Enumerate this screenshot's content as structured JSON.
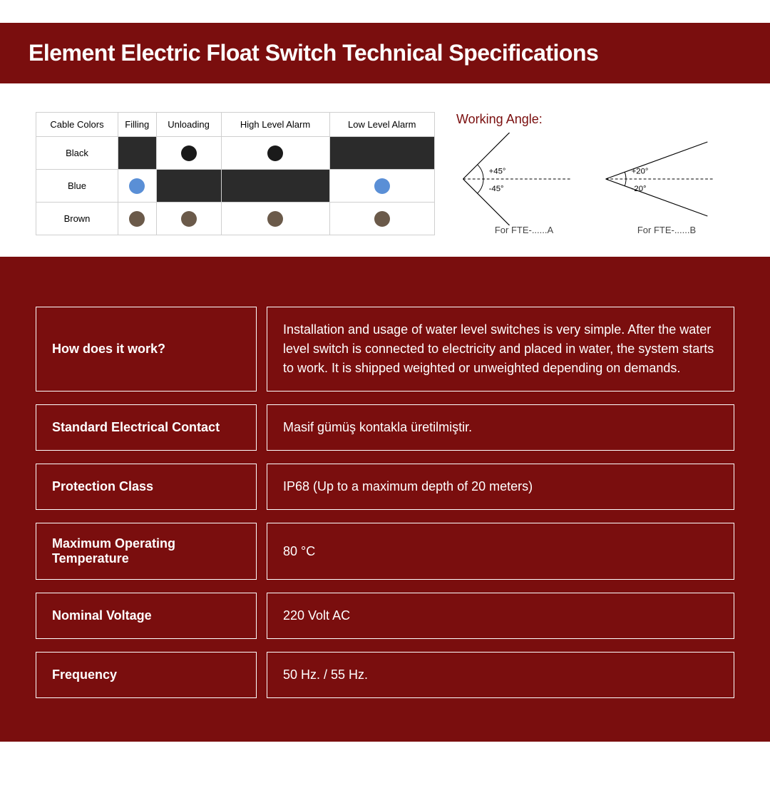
{
  "header": {
    "title": "Element Electric Float Switch Technical Specifications"
  },
  "colors": {
    "brand": "#7a0e0e",
    "dark_cell": "#2b2b2b",
    "table_border": "#cfcfcf",
    "dot_black": "#1a1a1a",
    "dot_blue": "#5a8fd6",
    "dot_brown": "#6b5a4a",
    "white": "#ffffff"
  },
  "cable_table": {
    "columns": [
      "Cable Colors",
      "Filling",
      "Unloading",
      "High Level Alarm",
      "Low Level Alarm"
    ],
    "rows": [
      {
        "label": "Black",
        "cells": [
          {
            "bg": "dark",
            "dot": null
          },
          {
            "bg": "white",
            "dot": "dot_black"
          },
          {
            "bg": "white",
            "dot": "dot_black"
          },
          {
            "bg": "dark",
            "dot": null
          }
        ]
      },
      {
        "label": "Blue",
        "cells": [
          {
            "bg": "white",
            "dot": "dot_blue"
          },
          {
            "bg": "dark",
            "dot": null
          },
          {
            "bg": "dark",
            "dot": null
          },
          {
            "bg": "white",
            "dot": "dot_blue"
          }
        ]
      },
      {
        "label": "Brown",
        "cells": [
          {
            "bg": "white",
            "dot": "dot_brown"
          },
          {
            "bg": "white",
            "dot": "dot_brown"
          },
          {
            "bg": "white",
            "dot": "dot_brown"
          },
          {
            "bg": "white",
            "dot": "dot_brown"
          }
        ]
      }
    ]
  },
  "working_angle": {
    "label": "Working Angle:",
    "diagrams": [
      {
        "top_label": "+45°",
        "bottom_label": "-45°",
        "angle_deg": 45,
        "caption": "For FTE-......A"
      },
      {
        "top_label": "+20°",
        "bottom_label": "-20°",
        "angle_deg": 20,
        "caption": "For FTE-......B"
      }
    ]
  },
  "specs": [
    {
      "label": "How does it work?",
      "value": "Installation and usage of water level switches is very simple. After the water level switch is connected to electricity and placed in water, the system starts to work. It is shipped weighted or unweighted depending on demands."
    },
    {
      "label": "Standard Electrical Contact",
      "value": "Masif gümüş kontakla üretilmiştir."
    },
    {
      "label": "Protection Class",
      "value": "IP68 (Up to a maximum depth of 20 meters)"
    },
    {
      "label": "Maximum Operating Temperature",
      "value": "80 °C"
    },
    {
      "label": "Nominal Voltage",
      "value": "220 Volt AC"
    },
    {
      "label": "Frequency",
      "value": "50 Hz. / 55 Hz."
    }
  ]
}
